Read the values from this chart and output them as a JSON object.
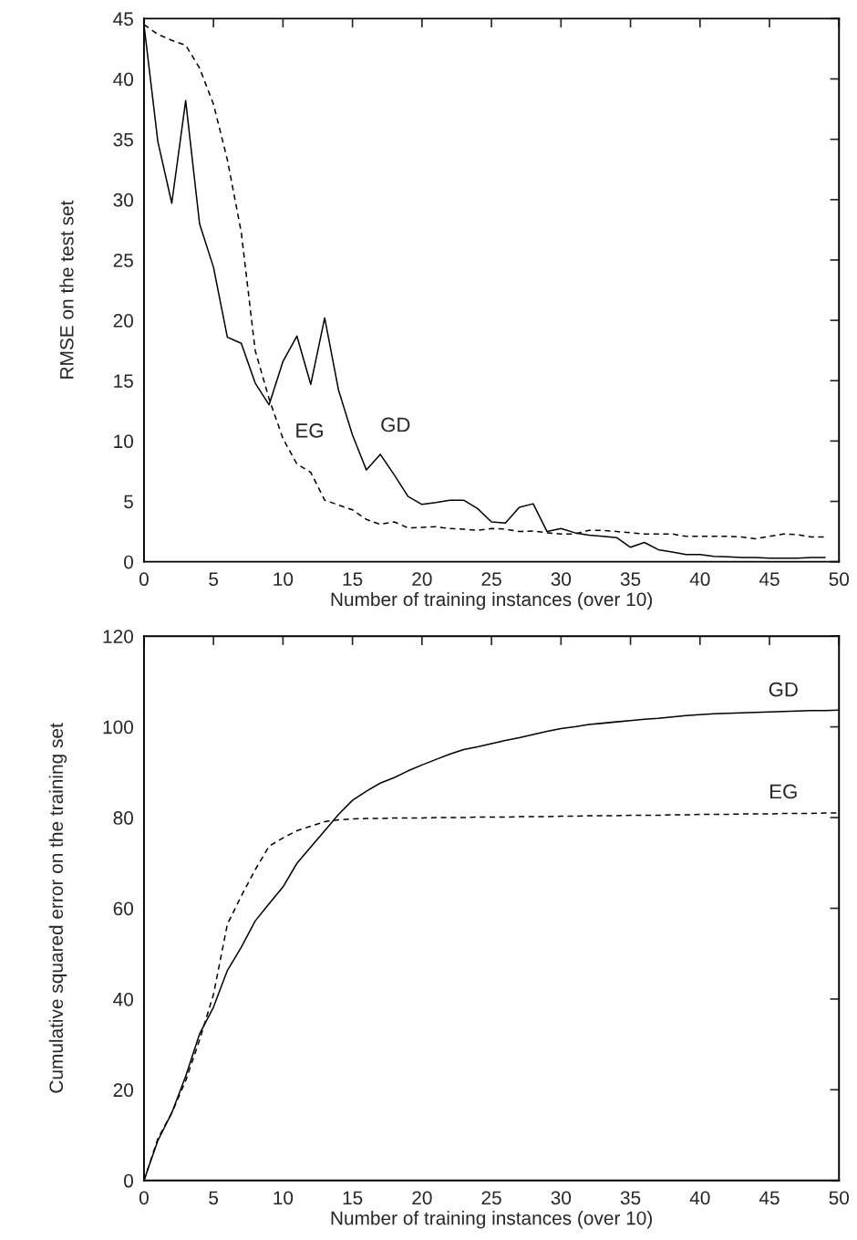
{
  "chart_data": [
    {
      "type": "line",
      "xlabel": "Number of training instances (over 10)",
      "ylabel": "RMSE on the test set",
      "xlim": [
        0,
        50
      ],
      "ylim": [
        0,
        45
      ],
      "xticks": [
        0,
        5,
        10,
        15,
        20,
        25,
        30,
        35,
        40,
        45,
        50
      ],
      "yticks": [
        0,
        5,
        10,
        15,
        20,
        25,
        30,
        35,
        40,
        45
      ],
      "grid": false,
      "legend": false,
      "x": [
        0,
        1,
        2,
        3,
        4,
        5,
        6,
        7,
        8,
        9,
        10,
        11,
        12,
        13,
        14,
        15,
        16,
        17,
        18,
        19,
        20,
        21,
        22,
        23,
        24,
        25,
        26,
        27,
        28,
        29,
        30,
        31,
        32,
        33,
        34,
        35,
        36,
        37,
        38,
        39,
        40,
        41,
        42,
        43,
        44,
        45,
        46,
        47,
        48,
        49
      ],
      "series": [
        {
          "name": "GD",
          "color": "#000000",
          "line_style": "solid",
          "values": [
            44.5,
            34.8,
            29.7,
            38.2,
            28.0,
            24.4,
            18.6,
            18.1,
            14.8,
            13.0,
            16.6,
            18.7,
            14.7,
            20.2,
            14.2,
            10.5,
            7.6,
            8.9,
            7.2,
            5.4,
            4.75,
            4.9,
            5.1,
            5.1,
            4.4,
            3.3,
            3.2,
            4.5,
            4.8,
            2.5,
            2.75,
            2.4,
            2.2,
            2.1,
            2.0,
            1.2,
            1.6,
            1.0,
            0.8,
            0.6,
            0.6,
            0.45,
            0.4,
            0.35,
            0.35,
            0.3,
            0.3,
            0.3,
            0.35,
            0.35
          ]
        },
        {
          "name": "EG",
          "color": "#000000",
          "line_style": "dashed",
          "values": [
            44.5,
            43.7,
            43.2,
            42.8,
            40.9,
            37.9,
            33.3,
            27.3,
            17.5,
            13.5,
            10.2,
            8.1,
            7.4,
            5.1,
            4.7,
            4.3,
            3.5,
            3.1,
            3.3,
            2.8,
            2.85,
            2.9,
            2.75,
            2.7,
            2.6,
            2.75,
            2.7,
            2.5,
            2.55,
            2.4,
            2.3,
            2.3,
            2.6,
            2.6,
            2.5,
            2.4,
            2.3,
            2.3,
            2.3,
            2.1,
            2.1,
            2.1,
            2.1,
            2.05,
            1.9,
            2.1,
            2.3,
            2.25,
            2.05,
            2.05
          ]
        }
      ]
    },
    {
      "type": "line",
      "xlabel": "Number of training instances (over 10)",
      "ylabel": "Cumulative squared error on the training set",
      "xlim": [
        0,
        50
      ],
      "ylim": [
        0,
        120
      ],
      "xticks": [
        0,
        5,
        10,
        15,
        20,
        25,
        30,
        35,
        40,
        45,
        50
      ],
      "yticks": [
        0,
        20,
        40,
        60,
        80,
        100,
        120
      ],
      "grid": false,
      "legend": false,
      "x": [
        0,
        1,
        2,
        3,
        4,
        5,
        6,
        7,
        8,
        9,
        10,
        11,
        12,
        13,
        14,
        15,
        16,
        17,
        18,
        19,
        20,
        21,
        22,
        23,
        24,
        25,
        26,
        27,
        28,
        29,
        30,
        31,
        32,
        33,
        34,
        35,
        36,
        37,
        38,
        39,
        40,
        41,
        42,
        43,
        44,
        45,
        46,
        47,
        48,
        49,
        50
      ],
      "series": [
        {
          "name": "GD",
          "color": "#000000",
          "line_style": "solid",
          "values": [
            0,
            8.8,
            14.9,
            23,
            32.3,
            38.2,
            46.3,
            51.4,
            57.2,
            61,
            64.7,
            69.9,
            73.5,
            77.1,
            80.7,
            83.8,
            85.8,
            87.6,
            88.8,
            90.3,
            91.6,
            92.8,
            94,
            95,
            95.6,
            96.3,
            97,
            97.6,
            98.3,
            99,
            99.6,
            100,
            100.5,
            100.8,
            101.1,
            101.4,
            101.7,
            101.9,
            102.2,
            102.5,
            102.7,
            102.9,
            103,
            103.1,
            103.2,
            103.3,
            103.4,
            103.5,
            103.6,
            103.6,
            103.7
          ]
        },
        {
          "name": "EG",
          "color": "#000000",
          "line_style": "dashed",
          "values": [
            0,
            9.2,
            14.9,
            22,
            31,
            41,
            56.5,
            62.7,
            68.5,
            73.7,
            75.5,
            77.1,
            78.1,
            79.1,
            79.5,
            79.7,
            79.8,
            79.8,
            79.9,
            79.9,
            79.9,
            80,
            80,
            80,
            80.1,
            80.1,
            80.1,
            80.2,
            80.2,
            80.2,
            80.3,
            80.3,
            80.4,
            80.4,
            80.4,
            80.5,
            80.5,
            80.5,
            80.6,
            80.6,
            80.7,
            80.7,
            80.7,
            80.8,
            80.8,
            80.8,
            80.9,
            80.9,
            80.9,
            81,
            81
          ]
        }
      ]
    }
  ]
}
